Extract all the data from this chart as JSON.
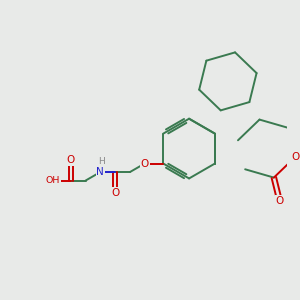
{
  "bg_color": "#e8eae8",
  "bond_color": "#3a7a50",
  "atom_colors": {
    "O": "#cc0000",
    "N": "#2222cc",
    "H": "#888888",
    "C": "#3a7a50"
  },
  "bond_lw": 1.4,
  "font_size": 7.5
}
